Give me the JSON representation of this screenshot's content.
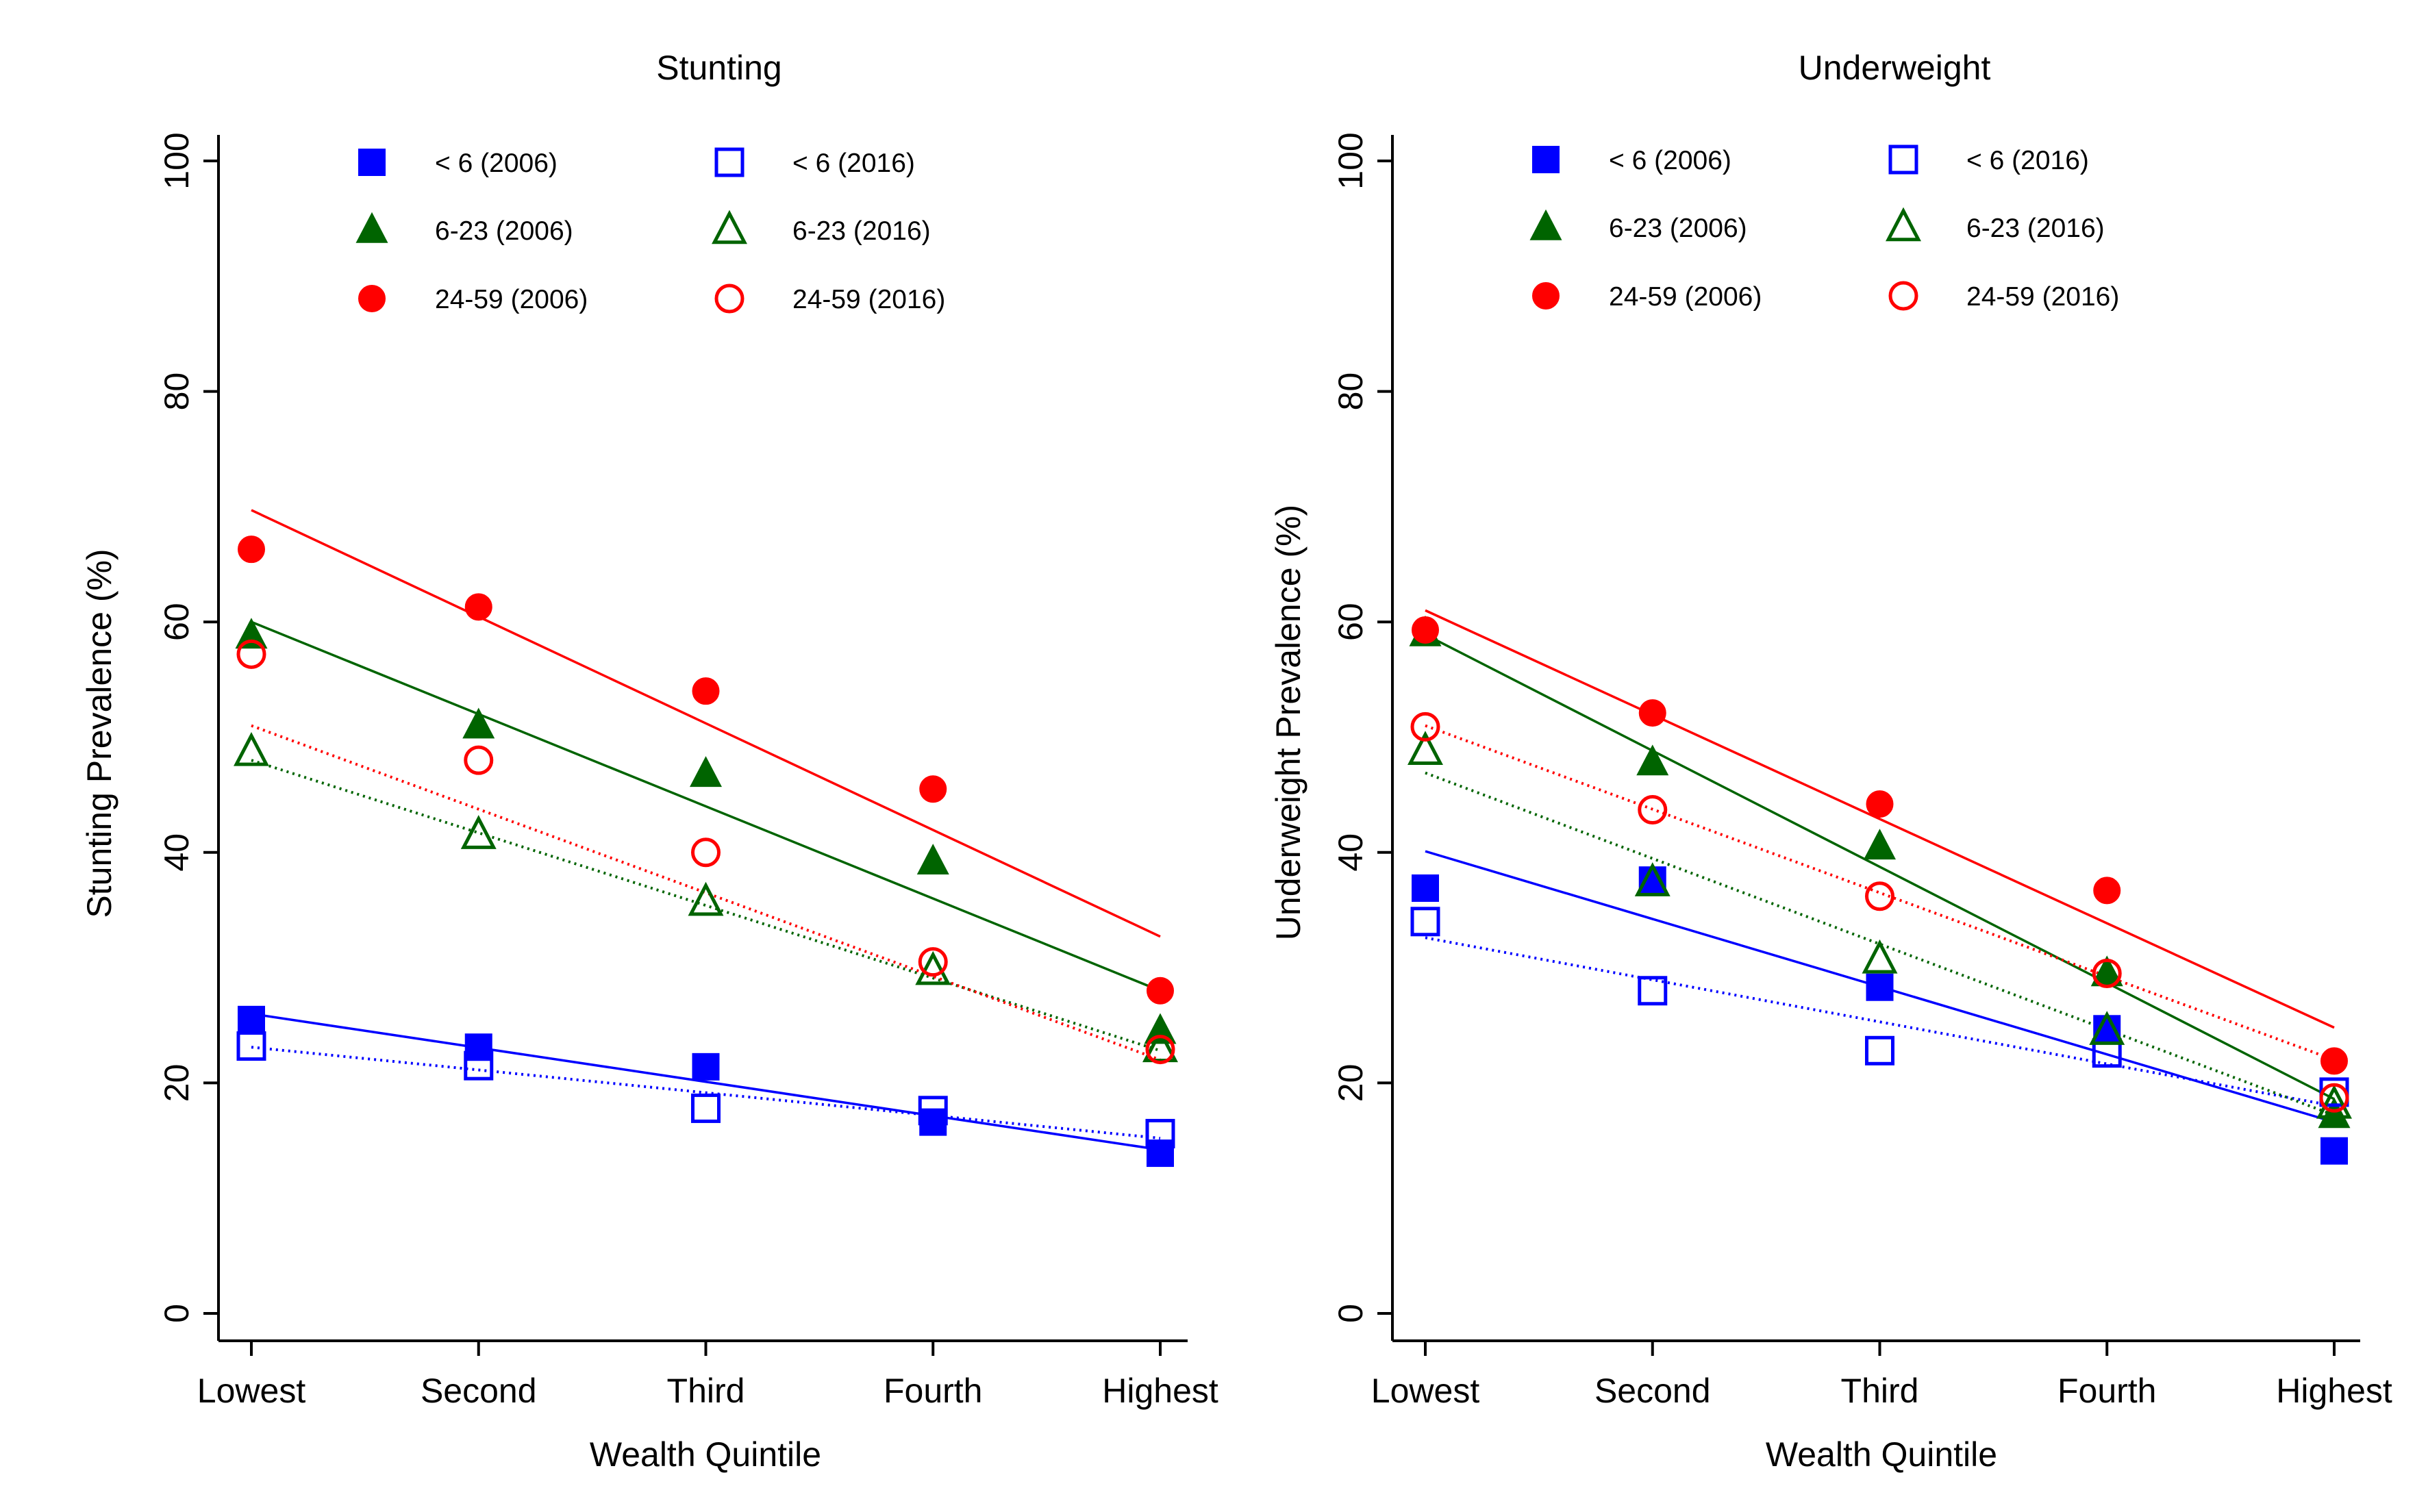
{
  "colors": {
    "under6": "#0000ff",
    "age6to23": "#006400",
    "age24to59": "#ff0000",
    "axis": "#000000"
  },
  "chart_data": [
    {
      "id": "stunting",
      "type": "scatter",
      "title": "Stunting",
      "xlabel": "Wealth Quintile",
      "ylabel": "Stunting Prevalence (%)",
      "categories": [
        "Lowest",
        "Second",
        "Third",
        "Fourth",
        "Highest"
      ],
      "ylim": [
        0,
        100
      ],
      "yticks": [
        0,
        20,
        40,
        60,
        80,
        100
      ],
      "legend_position": "top",
      "series": [
        {
          "name": "< 6 (2006)",
          "group": "under6",
          "year": 2006,
          "marker": "square",
          "filled": true,
          "values": [
            25.5,
            23.1,
            21.4,
            16.6,
            13.9
          ],
          "fit": [
            26.0,
            14.2
          ],
          "line_style": "solid"
        },
        {
          "name": "< 6 (2016)",
          "group": "under6",
          "year": 2016,
          "marker": "square",
          "filled": false,
          "values": [
            23.2,
            21.5,
            17.8,
            17.6,
            15.6
          ],
          "fit": [
            23.1,
            15.2
          ],
          "line_style": "dotted"
        },
        {
          "name": "6-23 (2006)",
          "group": "age6to23",
          "year": 2006,
          "marker": "triangle",
          "filled": true,
          "values": [
            58.8,
            51.0,
            46.8,
            39.2,
            24.5
          ],
          "fit": [
            60.0,
            28.0
          ],
          "line_style": "solid"
        },
        {
          "name": "6-23 (2016)",
          "group": "age6to23",
          "year": 2016,
          "marker": "triangle",
          "filled": false,
          "values": [
            48.7,
            41.5,
            35.7,
            29.7,
            23.0
          ],
          "fit": [
            48.0,
            22.8
          ],
          "line_style": "dotted"
        },
        {
          "name": "24-59 (2006)",
          "group": "age24to59",
          "year": 2006,
          "marker": "circle",
          "filled": true,
          "values": [
            66.3,
            61.3,
            54.0,
            45.5,
            28.0
          ],
          "fit": [
            69.7,
            32.7
          ],
          "line_style": "solid"
        },
        {
          "name": "24-59 (2016)",
          "group": "age24to59",
          "year": 2016,
          "marker": "circle",
          "filled": false,
          "values": [
            57.2,
            48.0,
            40.0,
            30.5,
            22.9
          ],
          "fit": [
            51.0,
            22.0
          ],
          "line_style": "dotted"
        }
      ]
    },
    {
      "id": "underweight",
      "type": "scatter",
      "title": "Underweight",
      "xlabel": "Wealth Quintile",
      "ylabel": "Underweight Prevalence (%)",
      "categories": [
        "Lowest",
        "Second",
        "Third",
        "Fourth",
        "Highest"
      ],
      "ylim": [
        0,
        100
      ],
      "yticks": [
        0,
        20,
        40,
        60,
        80,
        100
      ],
      "legend_position": "top",
      "series": [
        {
          "name": "< 6 (2006)",
          "group": "under6",
          "year": 2006,
          "marker": "square",
          "filled": true,
          "values": [
            36.9,
            37.6,
            28.3,
            24.7,
            14.1
          ],
          "fit": [
            40.1,
            16.6
          ],
          "line_style": "solid"
        },
        {
          "name": "< 6 (2016)",
          "group": "under6",
          "year": 2016,
          "marker": "square",
          "filled": false,
          "values": [
            34.0,
            28.0,
            22.8,
            22.6,
            19.2
          ],
          "fit": [
            32.6,
            18.0
          ],
          "line_style": "dotted"
        },
        {
          "name": "6-23 (2006)",
          "group": "age6to23",
          "year": 2006,
          "marker": "triangle",
          "filled": true,
          "values": [
            59.0,
            47.8,
            40.5,
            29.5,
            17.2
          ],
          "fit": [
            58.9,
            18.6
          ],
          "line_style": "solid"
        },
        {
          "name": "6-23 (2016)",
          "group": "age6to23",
          "year": 2016,
          "marker": "triangle",
          "filled": false,
          "values": [
            48.8,
            37.4,
            30.7,
            24.5,
            18.1
          ],
          "fit": [
            46.9,
            17.2
          ],
          "line_style": "dotted"
        },
        {
          "name": "24-59 (2006)",
          "group": "age24to59",
          "year": 2006,
          "marker": "circle",
          "filled": true,
          "values": [
            59.3,
            52.1,
            44.2,
            36.7,
            21.9
          ],
          "fit": [
            61.0,
            24.8
          ],
          "line_style": "solid"
        },
        {
          "name": "24-59 (2016)",
          "group": "age24to59",
          "year": 2016,
          "marker": "circle",
          "filled": false,
          "values": [
            50.9,
            43.7,
            36.2,
            29.5,
            18.7
          ],
          "fit": [
            51.0,
            22.0
          ],
          "line_style": "dotted"
        }
      ]
    }
  ]
}
